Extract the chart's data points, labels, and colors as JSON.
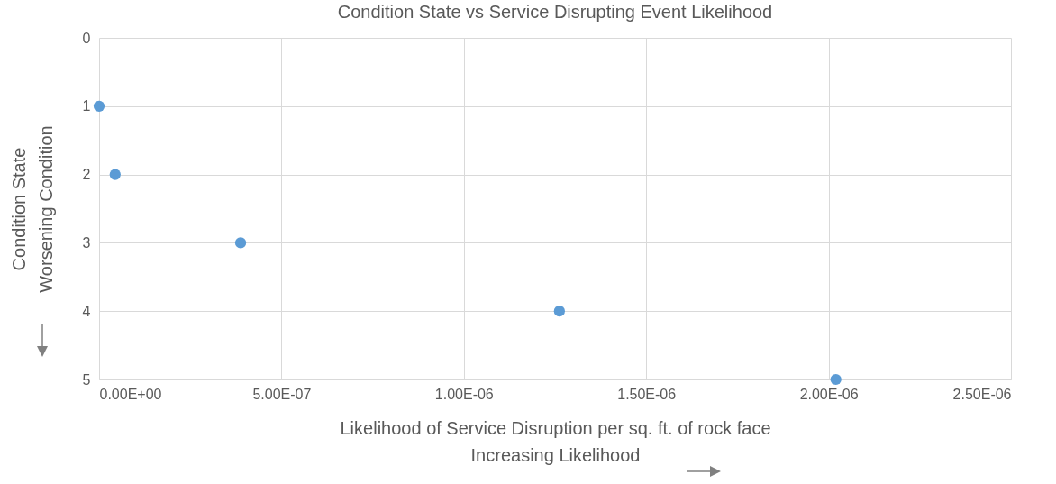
{
  "chart_data": {
    "type": "scatter",
    "title": "Condition State vs Service Disrupting Event Likelihood",
    "xlabel": "Likelihood of Service Disruption per sq. ft. of rock face\nIncreasing Likelihood",
    "ylabel": "Condition State\nWorsening Condition",
    "x": [
      0,
      4.4e-08,
      3.88e-07,
      1.262e-06,
      2.02e-06
    ],
    "series": [
      {
        "color": "#5b9bd5",
        "values": [
          1,
          2,
          3,
          4,
          5
        ]
      }
    ],
    "xlim": [
      0,
      2.5e-06
    ],
    "xticks": [
      {
        "value": 0,
        "label": "0.00E+00"
      },
      {
        "value": 5e-07,
        "label": "5.00E-07"
      },
      {
        "value": 1e-06,
        "label": "1.00E-06"
      },
      {
        "value": 1.5e-06,
        "label": "1.50E-06"
      },
      {
        "value": 2e-06,
        "label": "2.00E-06"
      },
      {
        "value": 2.5e-06,
        "label": "2.50E-06"
      }
    ],
    "ylim": [
      5,
      0
    ],
    "yticks": [
      0,
      1,
      2,
      3,
      4,
      5
    ],
    "grid": true,
    "marker": "circle"
  }
}
